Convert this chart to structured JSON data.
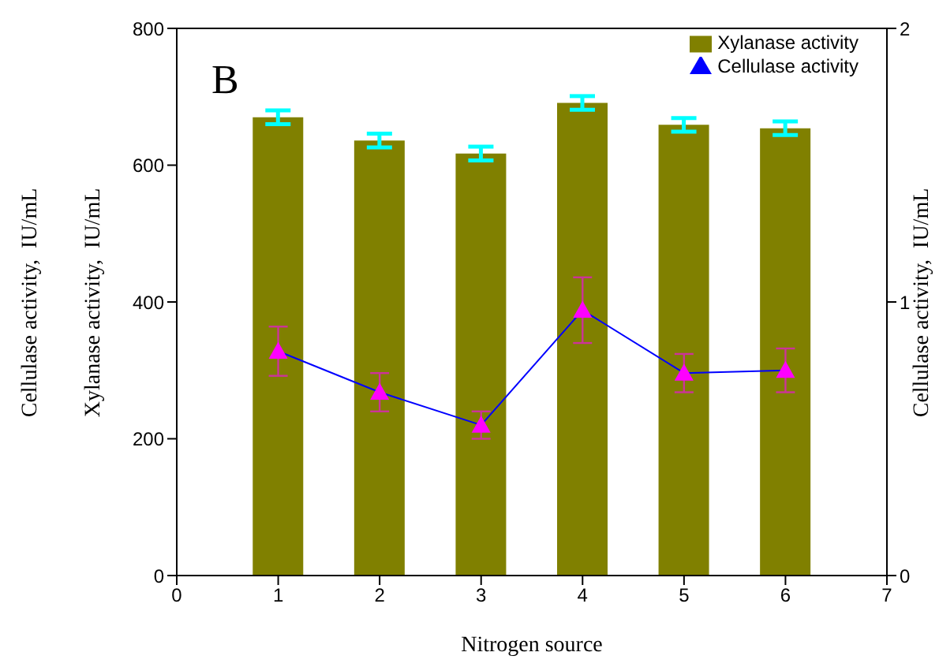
{
  "chart_data": {
    "type": "bar",
    "xlabel": "Nitrogen source",
    "ylabel": "Xylanase activity,  IU/mL",
    "y2label": "Cellulase activity,  IU/mL",
    "annotations": [
      "B",
      "Cellulase activity,  IU/mL"
    ],
    "x": [
      1,
      2,
      3,
      4,
      5,
      6
    ],
    "series": [
      {
        "name": "Xylanase activity",
        "color": "#808000",
        "values": [
          670,
          636,
          617,
          691,
          659,
          654
        ],
        "errors": [
          10,
          10,
          10,
          10,
          10,
          10
        ]
      },
      {
        "name": "Cellulase activity",
        "type": "line",
        "axis": "y2",
        "color": "#0000ff",
        "marker": "triangle",
        "values": [
          0.82,
          0.67,
          0.55,
          0.97,
          0.74,
          0.75
        ],
        "errors": [
          0.09,
          0.07,
          0.05,
          0.12,
          0.07,
          0.08
        ]
      }
    ],
    "xlim": [
      0,
      7
    ],
    "xticks": [
      0,
      1,
      2,
      3,
      4,
      5,
      6,
      7
    ],
    "ylim": [
      0,
      800
    ],
    "yticks": [
      0,
      200,
      400,
      600,
      800
    ],
    "y2lim": [
      0,
      2
    ],
    "y2ticks": [
      0,
      1,
      2
    ],
    "grid": false,
    "legend": "top right"
  }
}
